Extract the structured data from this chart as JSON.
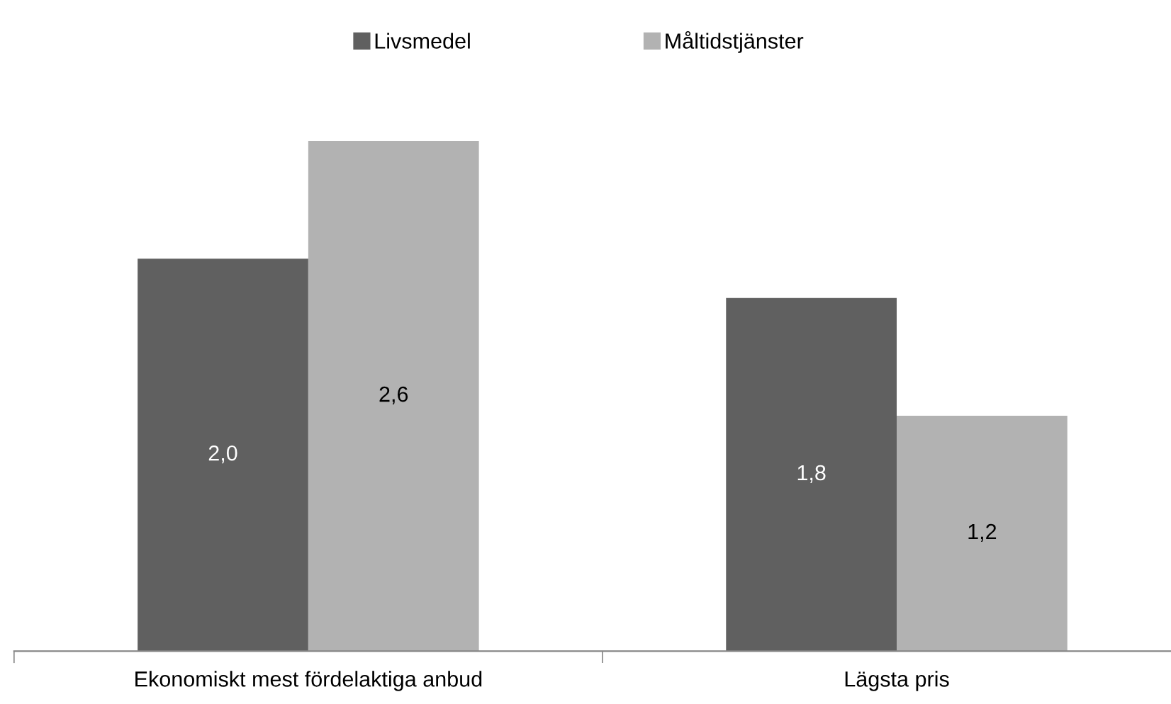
{
  "chart_data": {
    "type": "bar",
    "categories": [
      "Ekonomiskt mest fördelaktiga anbud",
      "Lägsta pris"
    ],
    "series": [
      {
        "name": "Livsmedel",
        "color": "#606060",
        "values": [
          2.0,
          1.8
        ],
        "value_labels": [
          "2,0",
          "1,8"
        ]
      },
      {
        "name": "Måltidstjänster",
        "color": "#b2b2b2",
        "values": [
          2.6,
          1.2
        ],
        "value_labels": [
          "2,6",
          "1,2"
        ]
      }
    ],
    "legend": "top",
    "grid": false
  }
}
